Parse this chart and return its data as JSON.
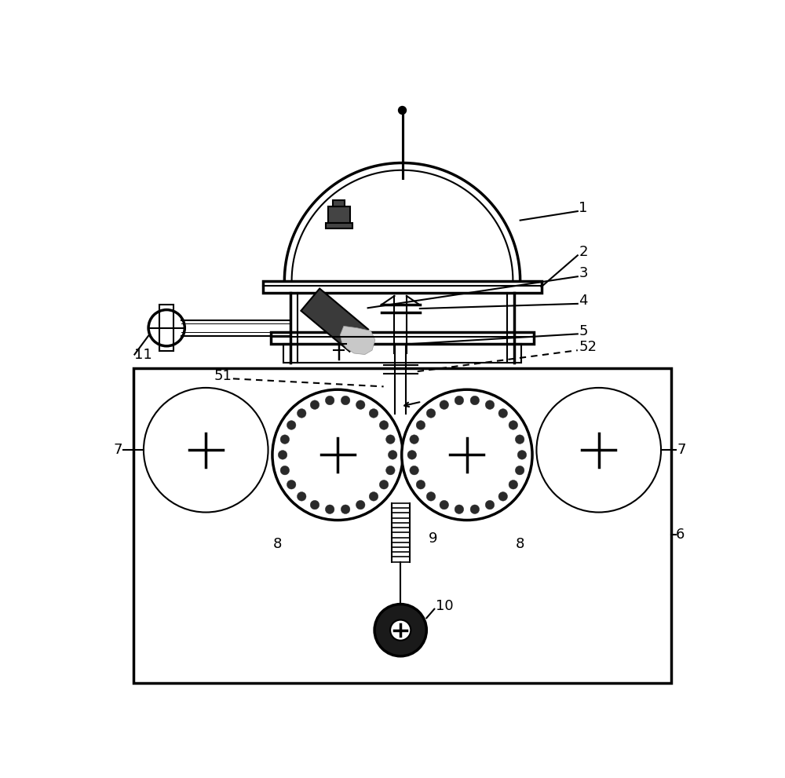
{
  "bg_color": "#ffffff",
  "line_color": "#000000",
  "line_width": 1.5,
  "thick_line": 2.5,
  "label_fontsize": 13,
  "figsize": [
    10.0,
    9.91
  ]
}
